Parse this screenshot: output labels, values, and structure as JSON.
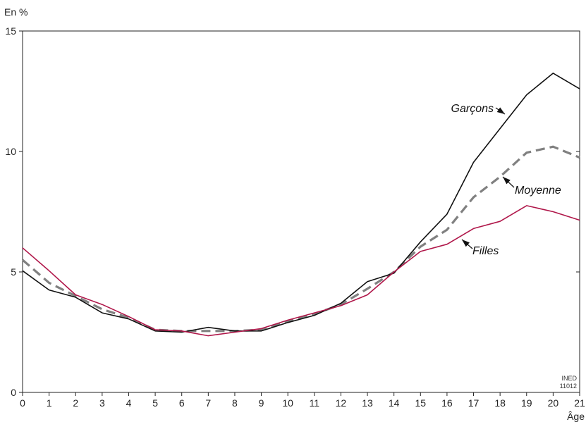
{
  "chart_data": {
    "type": "line",
    "ylabel": "En %",
    "xlabel": "Âge",
    "xlim": [
      0,
      21
    ],
    "ylim": [
      0,
      15
    ],
    "x": [
      0,
      1,
      2,
      3,
      4,
      5,
      6,
      7,
      8,
      9,
      10,
      11,
      12,
      13,
      14,
      15,
      16,
      17,
      18,
      19,
      20,
      21
    ],
    "x_ticks": [
      "0",
      "1",
      "2",
      "3",
      "4",
      "5",
      "6",
      "7",
      "8",
      "9",
      "10",
      "11",
      "12",
      "13",
      "14",
      "15",
      "16",
      "17",
      "18",
      "19",
      "20",
      "21"
    ],
    "y_ticks": [
      "0",
      "5",
      "10",
      "15"
    ],
    "y_tick_values": [
      0,
      5,
      10,
      15
    ],
    "grid": false,
    "series": [
      {
        "name": "Garçons",
        "color": "#111111",
        "style": "solid",
        "values": [
          5.05,
          4.25,
          3.95,
          3.3,
          3.05,
          2.55,
          2.5,
          2.7,
          2.55,
          2.55,
          2.9,
          3.2,
          3.7,
          4.6,
          4.95,
          6.25,
          7.4,
          9.55,
          10.95,
          12.35,
          13.25,
          12.6
        ]
      },
      {
        "name": "Moyenne",
        "color": "#808080",
        "style": "dashed",
        "values": [
          5.5,
          4.55,
          4.0,
          3.45,
          3.1,
          2.6,
          2.55,
          2.55,
          2.55,
          2.6,
          2.95,
          3.25,
          3.65,
          4.3,
          5.0,
          6.05,
          6.75,
          8.1,
          8.95,
          9.95,
          10.2,
          9.75
        ]
      },
      {
        "name": "Filles",
        "color": "#b0174a",
        "style": "solid",
        "values": [
          6.0,
          5.05,
          4.05,
          3.65,
          3.15,
          2.6,
          2.55,
          2.35,
          2.5,
          2.65,
          3.0,
          3.3,
          3.6,
          4.05,
          5.0,
          5.85,
          6.15,
          6.8,
          7.1,
          7.75,
          7.5,
          7.15
        ]
      }
    ],
    "credit_lines": [
      "INED",
      "11012"
    ]
  }
}
